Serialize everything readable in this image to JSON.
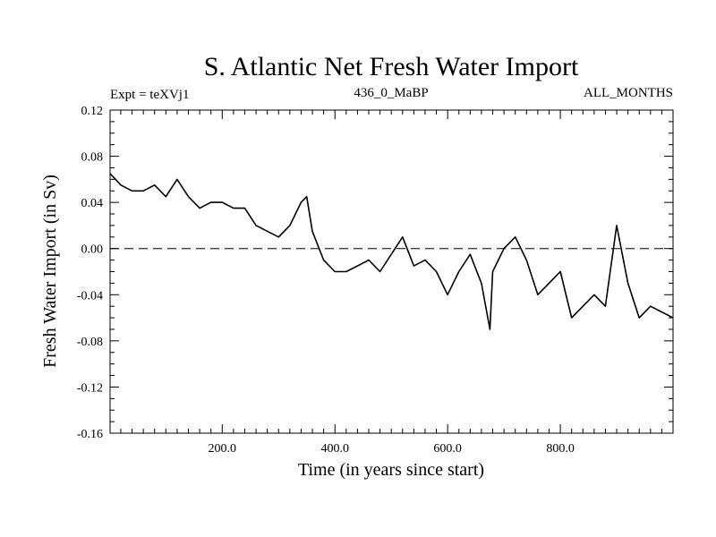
{
  "chart_data": {
    "type": "line",
    "title": "S. Atlantic Net Fresh Water Import",
    "subtitle_left": "Expt = teXVj1",
    "subtitle_center": "436_0_MaBP",
    "subtitle_right": "ALL_MONTHS",
    "xlabel": "Time (in years since start)",
    "ylabel": "Fresh Water Import (in Sv)",
    "xlim": [
      1,
      1000
    ],
    "ylim": [
      -0.16,
      0.12
    ],
    "xticks": [
      200,
      400,
      600,
      800
    ],
    "xtick_labels": [
      "200.0",
      "400.0",
      "600.0",
      "800.0"
    ],
    "yticks": [
      -0.16,
      -0.12,
      -0.08,
      -0.04,
      0.0,
      0.04,
      0.08,
      0.12
    ],
    "ytick_labels": [
      "-0.16",
      "-0.12",
      "-0.08",
      "-0.04",
      "0.00",
      "0.04",
      "0.08",
      "0.12"
    ],
    "reference_line": {
      "y": 0.0,
      "style": "dashed"
    },
    "grid": false,
    "series": [
      {
        "name": "Net fresh water import",
        "x": [
          1,
          20,
          40,
          60,
          80,
          100,
          120,
          140,
          160,
          180,
          200,
          220,
          240,
          260,
          280,
          300,
          320,
          340,
          350,
          360,
          380,
          400,
          420,
          440,
          460,
          480,
          500,
          520,
          540,
          560,
          580,
          600,
          620,
          640,
          660,
          675,
          680,
          700,
          720,
          740,
          760,
          780,
          800,
          820,
          840,
          860,
          880,
          900,
          920,
          940,
          960,
          980,
          1000
        ],
        "values": [
          0.065,
          0.055,
          0.05,
          0.05,
          0.055,
          0.045,
          0.06,
          0.045,
          0.035,
          0.04,
          0.04,
          0.035,
          0.035,
          0.02,
          0.015,
          0.01,
          0.02,
          0.04,
          0.045,
          0.015,
          -0.01,
          -0.02,
          -0.02,
          -0.015,
          -0.01,
          -0.02,
          -0.005,
          0.01,
          -0.015,
          -0.01,
          -0.02,
          -0.04,
          -0.02,
          -0.005,
          -0.03,
          -0.07,
          -0.02,
          0.0,
          0.01,
          -0.01,
          -0.04,
          -0.03,
          -0.02,
          -0.06,
          -0.05,
          -0.04,
          -0.05,
          0.02,
          -0.03,
          -0.06,
          -0.05,
          -0.055,
          -0.06
        ]
      }
    ]
  }
}
